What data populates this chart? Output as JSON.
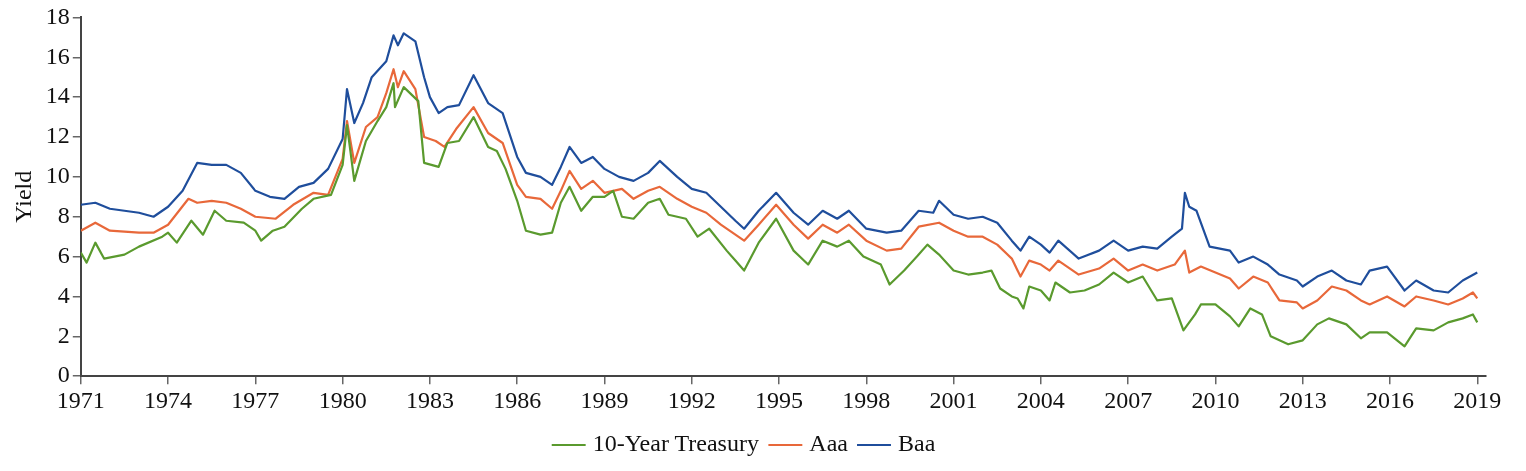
{
  "chart_data": {
    "type": "line",
    "ylabel": "Yield",
    "xlim": [
      1971,
      2019.3
    ],
    "xticks": [
      1971,
      1974,
      1977,
      1980,
      1983,
      1986,
      1989,
      1992,
      1995,
      1998,
      2001,
      2004,
      2007,
      2010,
      2013,
      2016,
      2019
    ],
    "ylim": [
      0,
      18
    ],
    "yticks": [
      0,
      2,
      4,
      6,
      8,
      10,
      12,
      14,
      16,
      18
    ],
    "grid": false,
    "legend": "bottom",
    "marker": "none",
    "line_style": "solid",
    "series": [
      {
        "name": "10-Year Treasury",
        "color": "#5a9a2e",
        "x": [
          1971,
          1971.2,
          1971.5,
          1971.8,
          1972.5,
          1973,
          1973.8,
          1974,
          1974.3,
          1974.8,
          1975.2,
          1975.6,
          1976,
          1976.6,
          1977,
          1977.2,
          1977.6,
          1978,
          1978.6,
          1979,
          1979.6,
          1980,
          1980.15,
          1980.4,
          1980.8,
          1981.2,
          1981.5,
          1981.75,
          1981.8,
          1982.1,
          1982.6,
          1982.8,
          1983.3,
          1983.6,
          1984,
          1984.5,
          1985,
          1985.3,
          1985.6,
          1986,
          1986.3,
          1986.8,
          1987.2,
          1987.5,
          1987.8,
          1988.2,
          1988.6,
          1989,
          1989.3,
          1989.6,
          1990,
          1990.5,
          1990.9,
          1991.2,
          1991.8,
          1992.2,
          1992.6,
          1993.2,
          1993.5,
          1993.8,
          1994.3,
          1994.9,
          1995.5,
          1996,
          1996.5,
          1997,
          1997.4,
          1997.9,
          1998.5,
          1998.8,
          1999.3,
          1999.8,
          2000.1,
          2000.5,
          2001,
          2001.5,
          2002,
          2002.3,
          2002.6,
          2003,
          2003.2,
          2003.4,
          2003.6,
          2004,
          2004.3,
          2004.5,
          2005,
          2005.5,
          2006,
          2006.5,
          2007,
          2007.5,
          2008,
          2008.5,
          2008.9,
          2009.3,
          2009.5,
          2010,
          2010.5,
          2010.8,
          2011.2,
          2011.6,
          2011.9,
          2012.5,
          2013,
          2013.5,
          2013.9,
          2014.5,
          2015,
          2015.3,
          2015.9,
          2016.5,
          2016.9,
          2017.5,
          2018,
          2018.5,
          2018.85,
          2019
        ],
        "values": [
          6.2,
          5.7,
          6.7,
          5.9,
          6.1,
          6.5,
          7.0,
          7.2,
          6.7,
          7.8,
          7.1,
          8.3,
          7.8,
          7.7,
          7.3,
          6.8,
          7.3,
          7.5,
          8.4,
          8.9,
          9.1,
          10.6,
          12.6,
          9.8,
          11.8,
          12.8,
          13.5,
          14.7,
          13.5,
          14.5,
          13.8,
          10.7,
          10.5,
          11.7,
          11.8,
          13.0,
          11.5,
          11.3,
          10.4,
          8.8,
          7.3,
          7.1,
          7.2,
          8.7,
          9.5,
          8.3,
          9.0,
          9.0,
          9.3,
          8.0,
          7.9,
          8.7,
          8.9,
          8.1,
          7.9,
          7.0,
          7.4,
          6.3,
          5.8,
          5.3,
          6.7,
          7.9,
          6.3,
          5.6,
          6.8,
          6.5,
          6.8,
          6.0,
          5.6,
          4.6,
          5.3,
          6.1,
          6.6,
          6.1,
          5.3,
          5.1,
          5.2,
          5.3,
          4.4,
          4.0,
          3.9,
          3.4,
          4.5,
          4.3,
          3.8,
          4.7,
          4.2,
          4.3,
          4.6,
          5.2,
          4.7,
          5.0,
          3.8,
          3.9,
          2.3,
          3.1,
          3.6,
          3.6,
          3.0,
          2.5,
          3.4,
          3.1,
          2.0,
          1.6,
          1.8,
          2.6,
          2.9,
          2.6,
          1.9,
          2.2,
          2.2,
          1.5,
          2.4,
          2.3,
          2.7,
          2.9,
          3.1,
          2.7
        ]
      },
      {
        "name": "Aaa",
        "color": "#e8683a",
        "x": [
          1971,
          1971.5,
          1972,
          1973,
          1973.5,
          1974,
          1974.7,
          1975,
          1975.5,
          1976,
          1976.5,
          1977,
          1977.7,
          1978.3,
          1979,
          1979.5,
          1980,
          1980.15,
          1980.4,
          1980.8,
          1981.2,
          1981.5,
          1981.75,
          1981.9,
          1982.1,
          1982.5,
          1982.8,
          1983.2,
          1983.5,
          1983.9,
          1984.5,
          1985,
          1985.5,
          1986,
          1986.3,
          1986.8,
          1987.2,
          1987.5,
          1987.8,
          1988.2,
          1988.6,
          1989,
          1989.6,
          1990,
          1990.5,
          1990.9,
          1991.5,
          1992,
          1992.5,
          1993,
          1993.8,
          1994.3,
          1994.9,
          1995.5,
          1996,
          1996.5,
          1997,
          1997.4,
          1998,
          1998.7,
          1999.2,
          1999.8,
          2000.5,
          2001,
          2001.5,
          2002,
          2002.5,
          2003,
          2003.3,
          2003.6,
          2004,
          2004.3,
          2004.6,
          2005.3,
          2006,
          2006.5,
          2007,
          2007.5,
          2008,
          2008.6,
          2008.95,
          2009.1,
          2009.5,
          2010,
          2010.5,
          2010.8,
          2011.3,
          2011.8,
          2012.2,
          2012.8,
          2013,
          2013.5,
          2014,
          2014.5,
          2015,
          2015.3,
          2015.9,
          2016.5,
          2016.9,
          2017.5,
          2018,
          2018.5,
          2018.85,
          2019
        ],
        "values": [
          7.3,
          7.7,
          7.3,
          7.2,
          7.2,
          7.6,
          8.9,
          8.7,
          8.8,
          8.7,
          8.4,
          8.0,
          7.9,
          8.6,
          9.2,
          9.1,
          10.9,
          12.8,
          10.7,
          12.5,
          13.0,
          14.2,
          15.4,
          14.5,
          15.3,
          14.4,
          12.0,
          11.8,
          11.5,
          12.4,
          13.5,
          12.2,
          11.7,
          9.6,
          9.0,
          8.9,
          8.4,
          9.3,
          10.3,
          9.4,
          9.8,
          9.2,
          9.4,
          8.9,
          9.3,
          9.5,
          8.9,
          8.5,
          8.2,
          7.6,
          6.8,
          7.6,
          8.6,
          7.6,
          6.9,
          7.6,
          7.2,
          7.6,
          6.8,
          6.3,
          6.4,
          7.5,
          7.7,
          7.3,
          7.0,
          7.0,
          6.6,
          5.9,
          5.0,
          5.8,
          5.6,
          5.3,
          5.8,
          5.1,
          5.4,
          5.9,
          5.3,
          5.6,
          5.3,
          5.6,
          6.3,
          5.2,
          5.5,
          5.2,
          4.9,
          4.4,
          5.0,
          4.7,
          3.8,
          3.7,
          3.4,
          3.8,
          4.5,
          4.3,
          3.8,
          3.6,
          4.0,
          3.5,
          4.0,
          3.8,
          3.6,
          3.9,
          4.2,
          3.9
        ]
      },
      {
        "name": "Baa",
        "color": "#1f4e9c",
        "x": [
          1971,
          1971.5,
          1972,
          1973,
          1973.5,
          1974,
          1974.5,
          1975,
          1975.5,
          1976,
          1976.5,
          1977,
          1977.5,
          1978,
          1978.5,
          1979,
          1979.5,
          1980,
          1980.15,
          1980.4,
          1980.7,
          1981,
          1981.5,
          1981.75,
          1981.9,
          1982.1,
          1982.5,
          1982.8,
          1983,
          1983.3,
          1983.6,
          1984,
          1984.5,
          1985,
          1985.5,
          1986,
          1986.3,
          1986.8,
          1987.2,
          1987.5,
          1987.8,
          1988.2,
          1988.6,
          1989,
          1989.5,
          1990,
          1990.5,
          1990.9,
          1991.5,
          1992,
          1992.5,
          1993,
          1993.5,
          1993.8,
          1994.3,
          1994.9,
          1995.5,
          1996,
          1996.5,
          1997,
          1997.4,
          1998,
          1998.7,
          1999.2,
          1999.8,
          2000.3,
          2000.5,
          2001,
          2001.5,
          2002,
          2002.5,
          2003,
          2003.3,
          2003.6,
          2004,
          2004.3,
          2004.6,
          2005.3,
          2006,
          2006.5,
          2007,
          2007.5,
          2008,
          2008.5,
          2008.85,
          2008.95,
          2009.1,
          2009.35,
          2009.8,
          2010.5,
          2010.8,
          2011.3,
          2011.8,
          2012.2,
          2012.8,
          2013,
          2013.5,
          2014,
          2014.5,
          2015,
          2015.3,
          2015.9,
          2016.5,
          2016.9,
          2017.5,
          2018,
          2018.5,
          2019
        ],
        "values": [
          8.6,
          8.7,
          8.4,
          8.2,
          8.0,
          8.5,
          9.3,
          10.7,
          10.6,
          10.6,
          10.2,
          9.3,
          9.0,
          8.9,
          9.5,
          9.7,
          10.4,
          11.9,
          14.4,
          12.7,
          13.7,
          15.0,
          15.8,
          17.1,
          16.6,
          17.2,
          16.8,
          15.0,
          14.0,
          13.2,
          13.5,
          13.6,
          15.1,
          13.7,
          13.2,
          11.0,
          10.2,
          10.0,
          9.6,
          10.5,
          11.5,
          10.7,
          11.0,
          10.4,
          10.0,
          9.8,
          10.2,
          10.8,
          10.0,
          9.4,
          9.2,
          8.5,
          7.8,
          7.4,
          8.3,
          9.2,
          8.2,
          7.6,
          8.3,
          7.9,
          8.3,
          7.4,
          7.2,
          7.3,
          8.3,
          8.2,
          8.8,
          8.1,
          7.9,
          8.0,
          7.7,
          6.8,
          6.3,
          7.0,
          6.6,
          6.2,
          6.8,
          5.9,
          6.3,
          6.8,
          6.3,
          6.5,
          6.4,
          7.0,
          7.4,
          9.2,
          8.5,
          8.3,
          6.5,
          6.3,
          5.7,
          6.0,
          5.6,
          5.1,
          4.8,
          4.5,
          5.0,
          5.3,
          4.8,
          4.6,
          5.3,
          5.5,
          4.3,
          4.8,
          4.3,
          4.2,
          4.8,
          5.2
        ]
      }
    ]
  }
}
